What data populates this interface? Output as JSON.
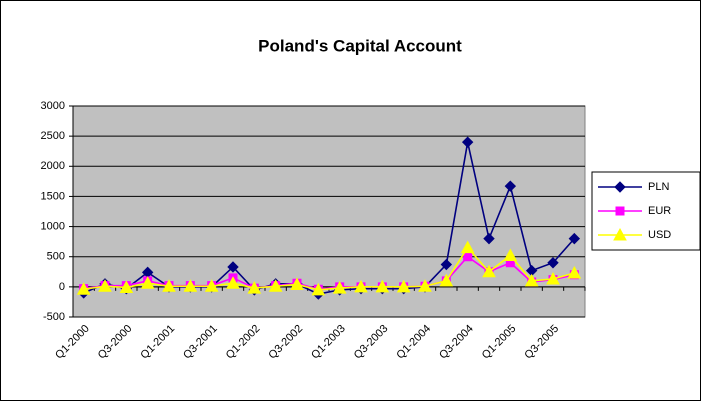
{
  "chart_data": {
    "type": "line",
    "title": "Poland's Capital Account",
    "categories": [
      "Q1-2000",
      null,
      "Q3-2000",
      null,
      "Q1-2001",
      null,
      "Q3-2001",
      null,
      "Q1-2002",
      null,
      "Q3-2002",
      null,
      "Q1-2003",
      null,
      "Q3-2003",
      null,
      "Q1-2004",
      null,
      "Q3-2004",
      null,
      "Q1-2005",
      null,
      "Q3-2005",
      null
    ],
    "series": [
      {
        "name": "PLN",
        "color": "#000080",
        "marker": "diamond",
        "values": [
          -100,
          50,
          -30,
          240,
          0,
          0,
          0,
          330,
          -50,
          50,
          50,
          -120,
          -50,
          -30,
          -30,
          -30,
          0,
          370,
          2400,
          800,
          1670,
          270,
          400,
          800
        ]
      },
      {
        "name": "EUR",
        "color": "#ff00ff",
        "marker": "square",
        "values": [
          -30,
          20,
          20,
          100,
          20,
          20,
          20,
          150,
          -20,
          20,
          60,
          -40,
          0,
          0,
          0,
          0,
          10,
          100,
          500,
          250,
          400,
          80,
          120,
          200
        ]
      },
      {
        "name": "USD",
        "color": "#ffff00",
        "marker": "triangle",
        "values": [
          -40,
          10,
          -10,
          60,
          10,
          10,
          10,
          60,
          -20,
          10,
          40,
          -50,
          -20,
          0,
          0,
          0,
          10,
          100,
          650,
          250,
          520,
          100,
          130,
          230
        ]
      }
    ],
    "ylim": [
      -500,
      3000
    ],
    "yticks": [
      -500,
      0,
      500,
      1000,
      1500,
      2000,
      2500,
      3000
    ],
    "grid": true,
    "legend": "right"
  }
}
